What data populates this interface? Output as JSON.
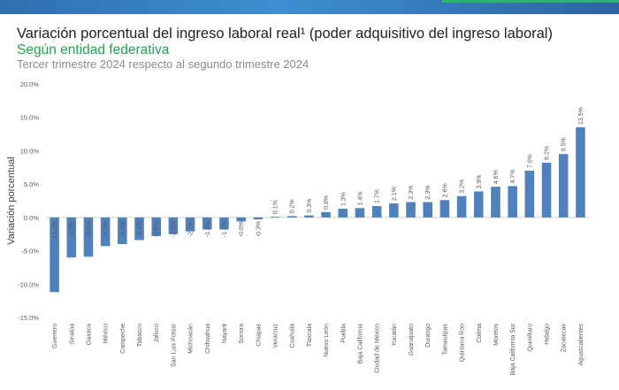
{
  "header": {
    "title": "Variación porcentual del ingreso laboral real¹ (poder adquisitivo del ingreso laboral)",
    "subtitle": "Según entidad federativa",
    "subtitle2": "Tercer trimestre 2024 respecto al segundo trimestre 2024"
  },
  "colors": {
    "bar": "#4f81bd",
    "title": "#1f1f1f",
    "subtitle": "#21a34e",
    "subtitle2": "#8a8a8a",
    "axis": "#595959"
  },
  "chart_data": {
    "type": "bar",
    "ylabel": "Variación porcentual",
    "ylim": [
      -15,
      20
    ],
    "yticks": [
      "-15.0%",
      "-10.0%",
      "-5.0%",
      "0.0%",
      "5.0%",
      "10.0%",
      "15.0%",
      "20.0%"
    ],
    "grid": false,
    "categories": [
      "Guerrero",
      "Sinaloa",
      "Oaxaca",
      "México",
      "Campeche",
      "Tabasco",
      "Jalisco",
      "San Luis Potosí",
      "Michoacán",
      "Chihuahua",
      "Nayarit",
      "Sonora",
      "Chiapas",
      "Veracruz",
      "Coahuila",
      "Tlaxcala",
      "Nuevo León",
      "Puebla",
      "Baja California",
      "Ciudad de México",
      "Yucatán",
      "Guanajuato",
      "Durango",
      "Tamaulipas",
      "Quintana Roo",
      "Colima",
      "Morelos",
      "Baja California Sur",
      "Querétaro",
      "Hidalgo",
      "Zacatecas",
      "Aguascalientes"
    ],
    "values": [
      -11.2,
      -6.0,
      -5.9,
      -4.3,
      -4.0,
      -3.4,
      -2.8,
      -2.5,
      -2.1,
      -1.8,
      -1.8,
      -0.6,
      -0.3,
      0.1,
      0.2,
      0.3,
      0.8,
      1.3,
      1.4,
      1.7,
      2.1,
      2.3,
      2.3,
      2.6,
      3.2,
      3.9,
      4.6,
      4.7,
      7.0,
      8.2,
      9.5,
      13.5
    ],
    "labels": [
      "-11.2%",
      "-6.0%",
      "-5.9%",
      "-4.3%",
      "-4.0%",
      "-3.4%",
      "-2.8%",
      "-2.5%",
      "-2.1%",
      "-1.8%",
      "-1.8%",
      "-0.6%",
      "-0.3%",
      "0.1%",
      "0.2%",
      "0.3%",
      "0.8%",
      "1.3%",
      "1.4%",
      "1.7%",
      "2.1%",
      "2.3%",
      "2.3%",
      "2.6%",
      "3.2%",
      "3.9%",
      "4.6%",
      "4.7%",
      "7.0%",
      "8.2%",
      "9.5%",
      "13.5%"
    ]
  }
}
